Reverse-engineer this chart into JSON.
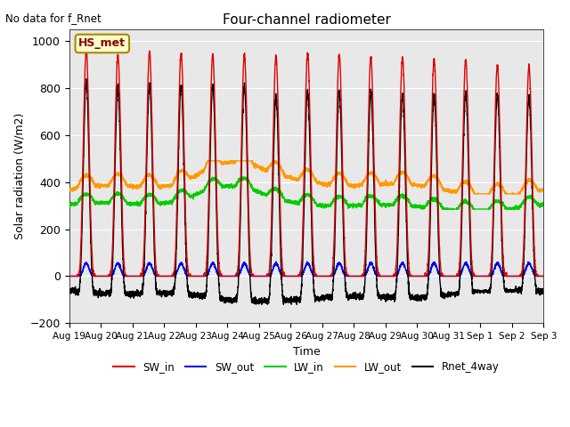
{
  "title": "Four-channel radiometer",
  "top_left_text": "No data for f_Rnet",
  "ylabel": "Solar radiation (W/m2)",
  "xlabel": "Time",
  "station_label": "HS_met",
  "ylim": [
    -200,
    1050
  ],
  "background_color": "#e8e8e8",
  "colors": {
    "SW_in": "#dd0000",
    "SW_out": "#0000ee",
    "LW_in": "#00cc00",
    "LW_out": "#ff9900",
    "Rnet_4way": "#000000"
  },
  "xtick_labels": [
    "Aug 19",
    "Aug 20",
    "Aug 21",
    "Aug 22",
    "Aug 23",
    "Aug 24",
    "Aug 25",
    "Aug 26",
    "Aug 27",
    "Aug 28",
    "Aug 29",
    "Aug 30",
    "Aug 31",
    "Sep 1",
    "Sep 2",
    "Sep 3"
  ],
  "n_days": 15,
  "yticks": [
    -200,
    0,
    200,
    400,
    600,
    800,
    1000
  ]
}
